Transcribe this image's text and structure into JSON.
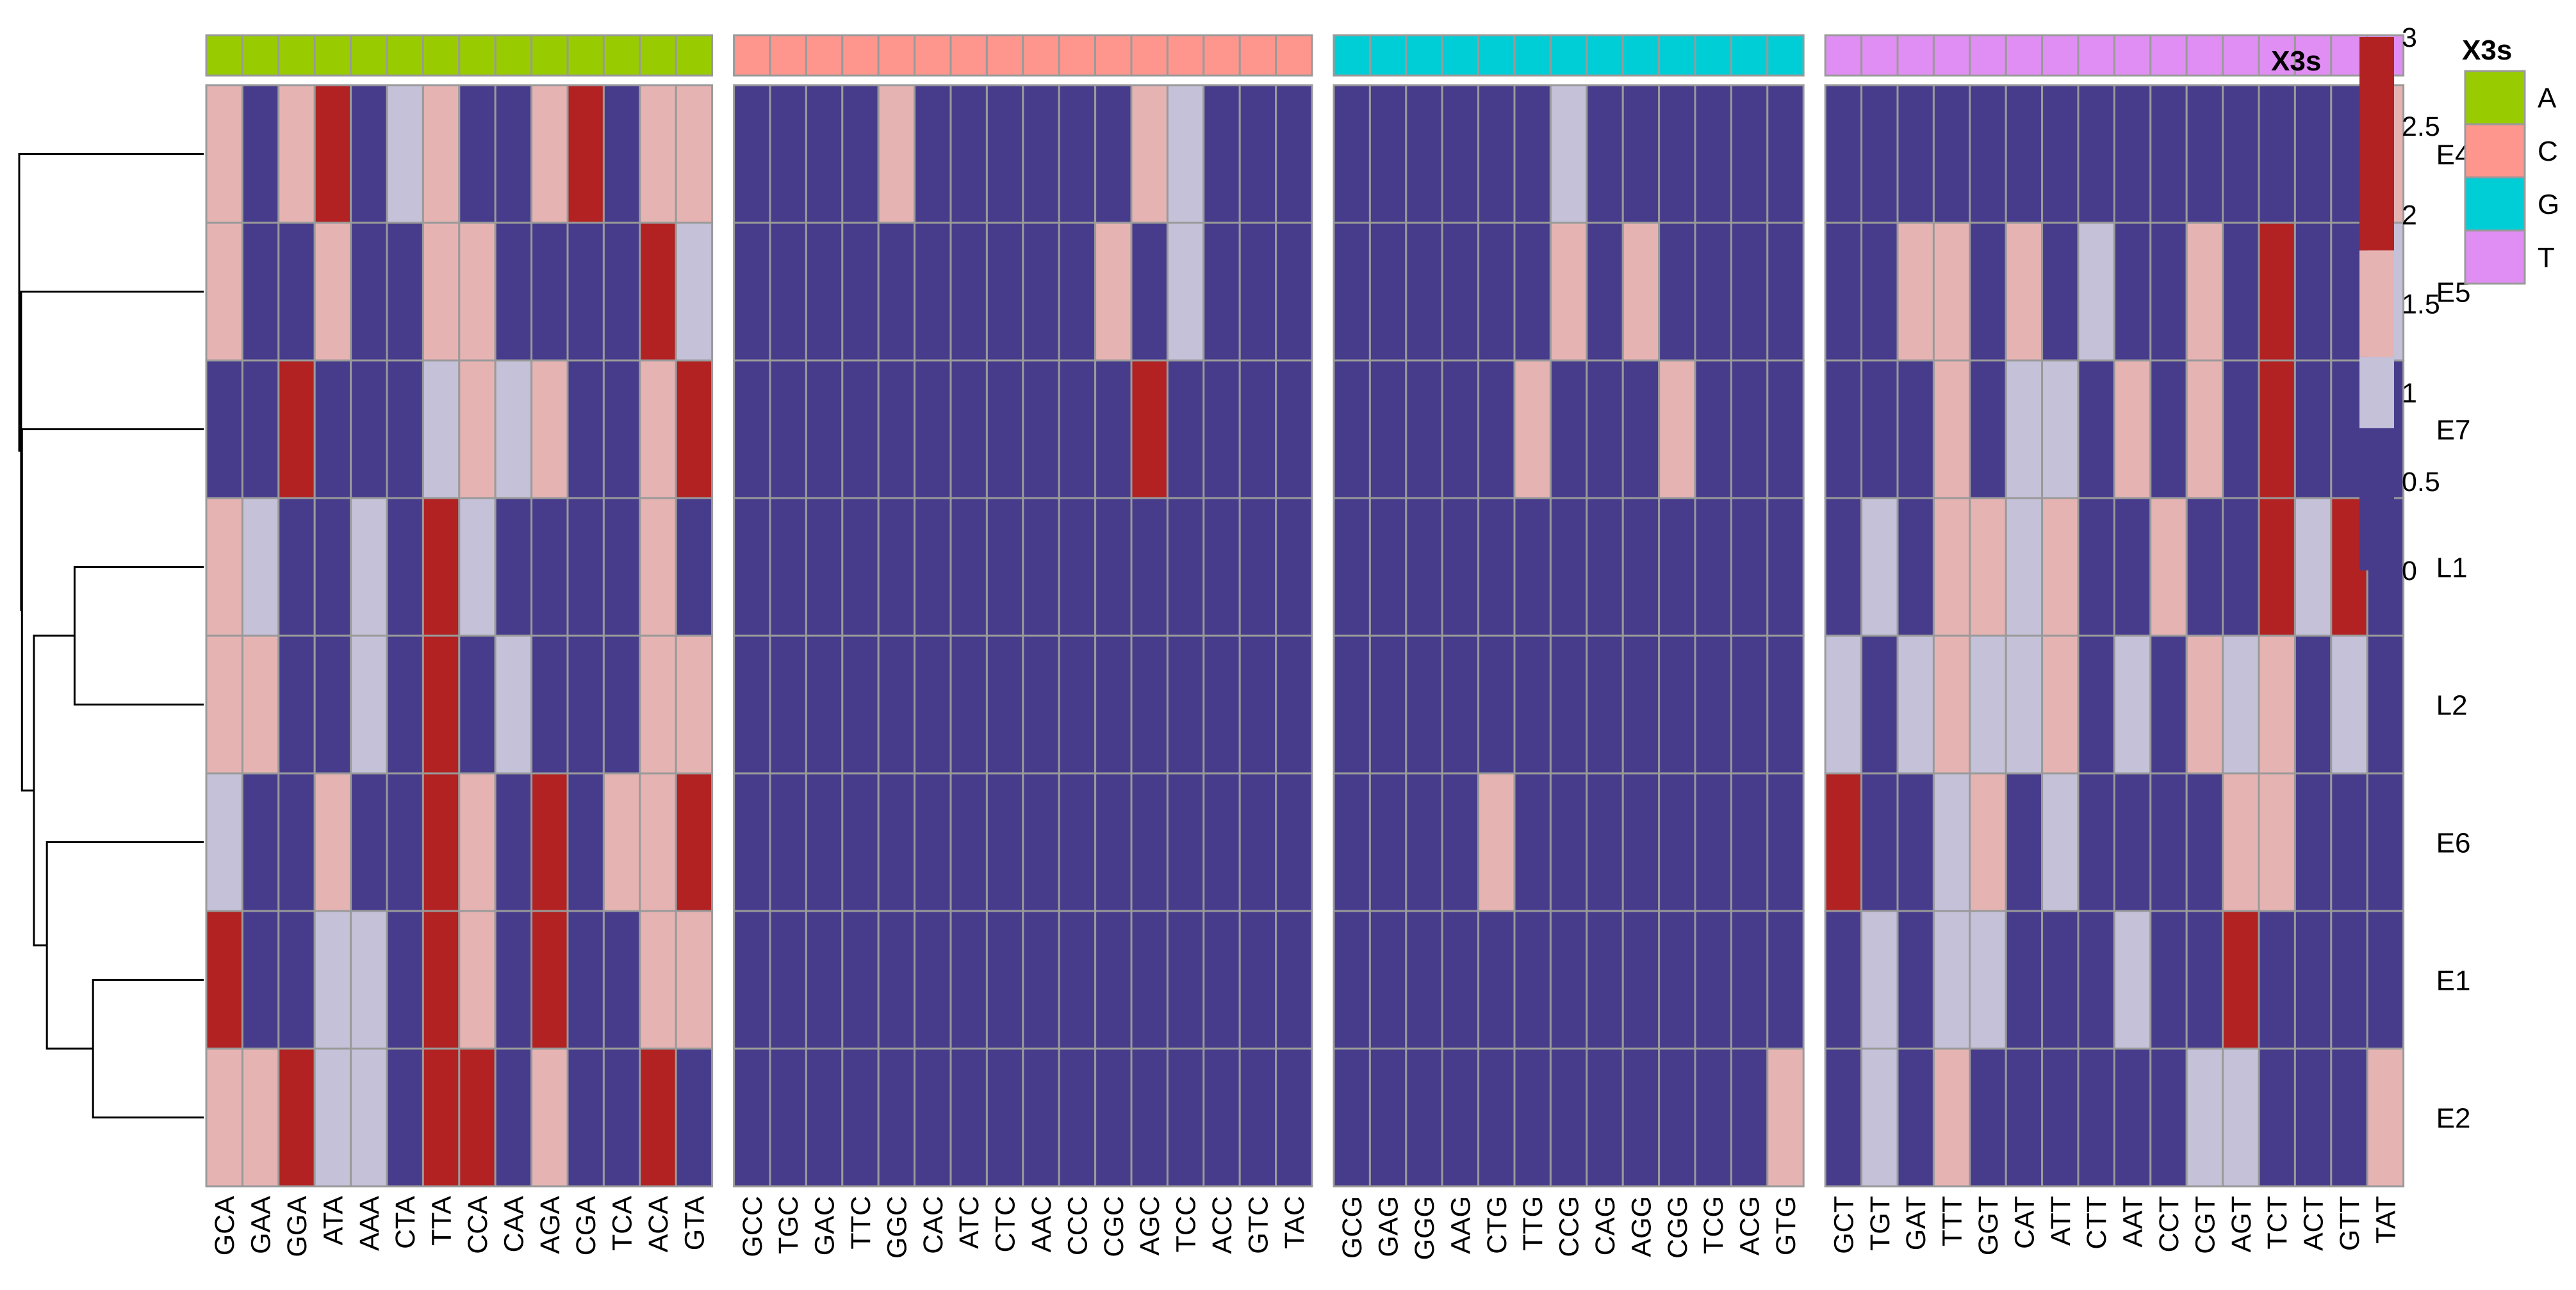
{
  "chart_data": {
    "type": "heatmap",
    "annotation_title": "X3s",
    "legend_title": "X3s",
    "legend_items": [
      {
        "label": "A",
        "color": "#99CC00"
      },
      {
        "label": "C",
        "color": "#FF968E"
      },
      {
        "label": "G",
        "color": "#00CED6"
      },
      {
        "label": "T",
        "color": "#E08EF4"
      }
    ],
    "colorbar": {
      "ticks": [
        "3",
        "2.5",
        "2",
        "1.5",
        "1",
        "0.5",
        "0"
      ],
      "range": [
        0,
        3
      ],
      "bins": [
        {
          "from": 0,
          "to": 0.8,
          "color": "#473C8B"
        },
        {
          "from": 0.8,
          "to": 1.2,
          "color": "#C4C1D9"
        },
        {
          "from": 1.2,
          "to": 1.8,
          "color": "#E6B3B3"
        },
        {
          "from": 1.8,
          "to": 3,
          "color": "#B22222"
        }
      ]
    },
    "rows": [
      "E4",
      "E5",
      "E7",
      "L1",
      "L2",
      "E6",
      "E1",
      "E2"
    ],
    "column_groups": [
      {
        "group": "A",
        "color": "#99CC00",
        "columns": [
          "GCA",
          "GAA",
          "GGA",
          "ATA",
          "AAA",
          "CTA",
          "TTA",
          "CCA",
          "CAA",
          "AGA",
          "CGA",
          "TCA",
          "ACA",
          "GTA"
        ],
        "values": [
          [
            1.5,
            0,
            1.5,
            2,
            0,
            1,
            1.5,
            0,
            0,
            1.5,
            2,
            0,
            1.5,
            1.5
          ],
          [
            1.5,
            0,
            0,
            1.5,
            0,
            0,
            1.5,
            1.5,
            0,
            0,
            0,
            0,
            2,
            1
          ],
          [
            0,
            0,
            2,
            0,
            0,
            0,
            1,
            1.5,
            1,
            1.5,
            0,
            0,
            1.5,
            2
          ],
          [
            1.5,
            1,
            0,
            0,
            1,
            0,
            2,
            1,
            0,
            0,
            0,
            0,
            1.5,
            0
          ],
          [
            1.5,
            1.5,
            0,
            0,
            1,
            0,
            2,
            0,
            1,
            0,
            0,
            0,
            1.5,
            1.5
          ],
          [
            1,
            0,
            0,
            1.5,
            0,
            0,
            2,
            1.5,
            0,
            2,
            0,
            1.5,
            1.5,
            2
          ],
          [
            2,
            0,
            0,
            1,
            1,
            0,
            2,
            1.5,
            0,
            2,
            0,
            0,
            1.5,
            1.5
          ],
          [
            1.5,
            1.5,
            2,
            1,
            1,
            0,
            2,
            2,
            0,
            1.5,
            0,
            0,
            2,
            0
          ]
        ]
      },
      {
        "group": "C",
        "color": "#FF968E",
        "columns": [
          "GCC",
          "TGC",
          "GAC",
          "TTC",
          "GGC",
          "CAC",
          "ATC",
          "CTC",
          "AAC",
          "CCC",
          "CGC",
          "AGC",
          "TCC",
          "ACC",
          "GTC",
          "TAC"
        ],
        "values": [
          [
            0,
            0,
            0,
            0,
            1.5,
            0,
            0,
            0,
            0,
            0,
            0,
            1.5,
            1,
            0,
            0,
            0
          ],
          [
            0,
            0,
            0,
            0,
            0,
            0,
            0,
            0,
            0,
            0,
            1.5,
            0,
            1,
            0,
            0,
            0
          ],
          [
            0,
            0,
            0,
            0,
            0,
            0,
            0,
            0,
            0,
            0,
            0,
            2,
            0,
            0,
            0,
            0
          ],
          [
            0,
            0,
            0,
            0,
            0,
            0,
            0,
            0,
            0,
            0,
            0,
            0,
            0,
            0,
            0,
            0
          ],
          [
            0,
            0,
            0,
            0,
            0,
            0,
            0,
            0,
            0,
            0,
            0,
            0,
            0,
            0,
            0,
            0
          ],
          [
            0,
            0,
            0,
            0,
            0,
            0,
            0,
            0,
            0,
            0,
            0,
            0,
            0,
            0,
            0,
            0
          ],
          [
            0,
            0,
            0,
            0,
            0,
            0,
            0,
            0,
            0,
            0,
            0,
            0,
            0,
            0,
            0,
            0
          ],
          [
            0,
            0,
            0,
            0,
            0,
            0,
            0,
            0,
            0,
            0,
            0,
            0,
            0,
            0,
            0,
            0
          ]
        ]
      },
      {
        "group": "G",
        "color": "#00CED6",
        "columns": [
          "GCG",
          "GAG",
          "GGG",
          "AAG",
          "CTG",
          "TTG",
          "CCG",
          "CAG",
          "AGG",
          "CGG",
          "TCG",
          "ACG",
          "GTG"
        ],
        "values": [
          [
            0,
            0,
            0,
            0,
            0,
            0,
            1,
            0,
            0,
            0,
            0,
            0,
            0
          ],
          [
            0,
            0,
            0,
            0,
            0,
            0,
            1.5,
            0,
            1.5,
            0,
            0,
            0,
            0
          ],
          [
            0,
            0,
            0,
            0,
            0,
            1.5,
            0,
            0,
            0,
            1.5,
            0,
            0,
            0
          ],
          [
            0,
            0,
            0,
            0,
            0,
            0,
            0,
            0,
            0,
            0,
            0,
            0,
            0
          ],
          [
            0,
            0,
            0,
            0,
            0,
            0,
            0,
            0,
            0,
            0,
            0,
            0,
            0
          ],
          [
            0,
            0,
            0,
            0,
            1.5,
            0,
            0,
            0,
            0,
            0,
            0,
            0,
            0
          ],
          [
            0,
            0,
            0,
            0,
            0,
            0,
            0,
            0,
            0,
            0,
            0,
            0,
            0
          ],
          [
            0,
            0,
            0,
            0,
            0,
            0,
            0,
            0,
            0,
            0,
            0,
            0,
            1.5
          ]
        ]
      },
      {
        "group": "T",
        "color": "#E08EF4",
        "columns": [
          "GCT",
          "TGT",
          "GAT",
          "TTT",
          "GGT",
          "CAT",
          "ATT",
          "CTT",
          "AAT",
          "CCT",
          "CGT",
          "AGT",
          "TCT",
          "ACT",
          "GTT",
          "TAT"
        ],
        "values": [
          [
            0,
            0,
            0,
            0,
            0,
            0,
            0,
            0,
            0,
            0,
            0,
            0,
            0,
            0,
            0,
            1.5
          ],
          [
            0,
            0,
            1.5,
            1.5,
            0,
            1.5,
            0,
            1,
            0,
            0,
            1.5,
            0,
            2,
            0,
            0,
            1
          ],
          [
            0,
            0,
            0,
            1.5,
            0,
            1,
            1,
            0,
            1.5,
            0,
            1.5,
            0,
            2,
            0,
            0,
            0
          ],
          [
            0,
            1,
            0,
            1.5,
            1.5,
            1,
            1.5,
            0,
            0,
            1.5,
            0,
            0,
            2,
            1,
            2,
            0
          ],
          [
            1,
            0,
            1,
            1.5,
            1,
            1,
            1.5,
            0,
            1,
            0,
            1.5,
            1,
            1.5,
            0,
            1,
            0
          ],
          [
            2,
            0,
            0,
            1,
            1.5,
            0,
            1,
            0,
            0,
            0,
            0,
            1.5,
            1.5,
            0,
            0,
            0
          ],
          [
            0,
            1,
            0,
            1,
            1,
            0,
            0,
            0,
            1,
            0,
            0,
            2,
            0,
            0,
            0,
            0
          ],
          [
            0,
            1,
            0,
            1.5,
            0,
            0,
            0,
            0,
            0,
            0,
            1,
            1,
            0,
            0,
            0,
            1.5
          ]
        ]
      }
    ],
    "dendrogram": {
      "leaf_order": [
        "E4",
        "E5",
        "E7",
        "L1",
        "L2",
        "E6",
        "E1",
        "E2"
      ],
      "merges": [
        {
          "a": "L1",
          "b": "L2",
          "height": 0.7
        },
        {
          "a": "E1",
          "b": "E2",
          "height": 0.6
        },
        {
          "a": "E6",
          "b": "E1+E2",
          "height": 0.85
        },
        {
          "a": "L1+L2",
          "b": "E6+E1+E2",
          "height": 0.92
        },
        {
          "a": "E7",
          "b": "L1+L2+E6+E1+E2",
          "height": 0.985
        },
        {
          "a": "E5",
          "b": "E7+L1+L2+E6+E1+E2",
          "height": 0.99
        },
        {
          "a": "E4",
          "b": "E5+E7+L1+L2+E6+E1+E2",
          "height": 1.0
        }
      ]
    }
  }
}
